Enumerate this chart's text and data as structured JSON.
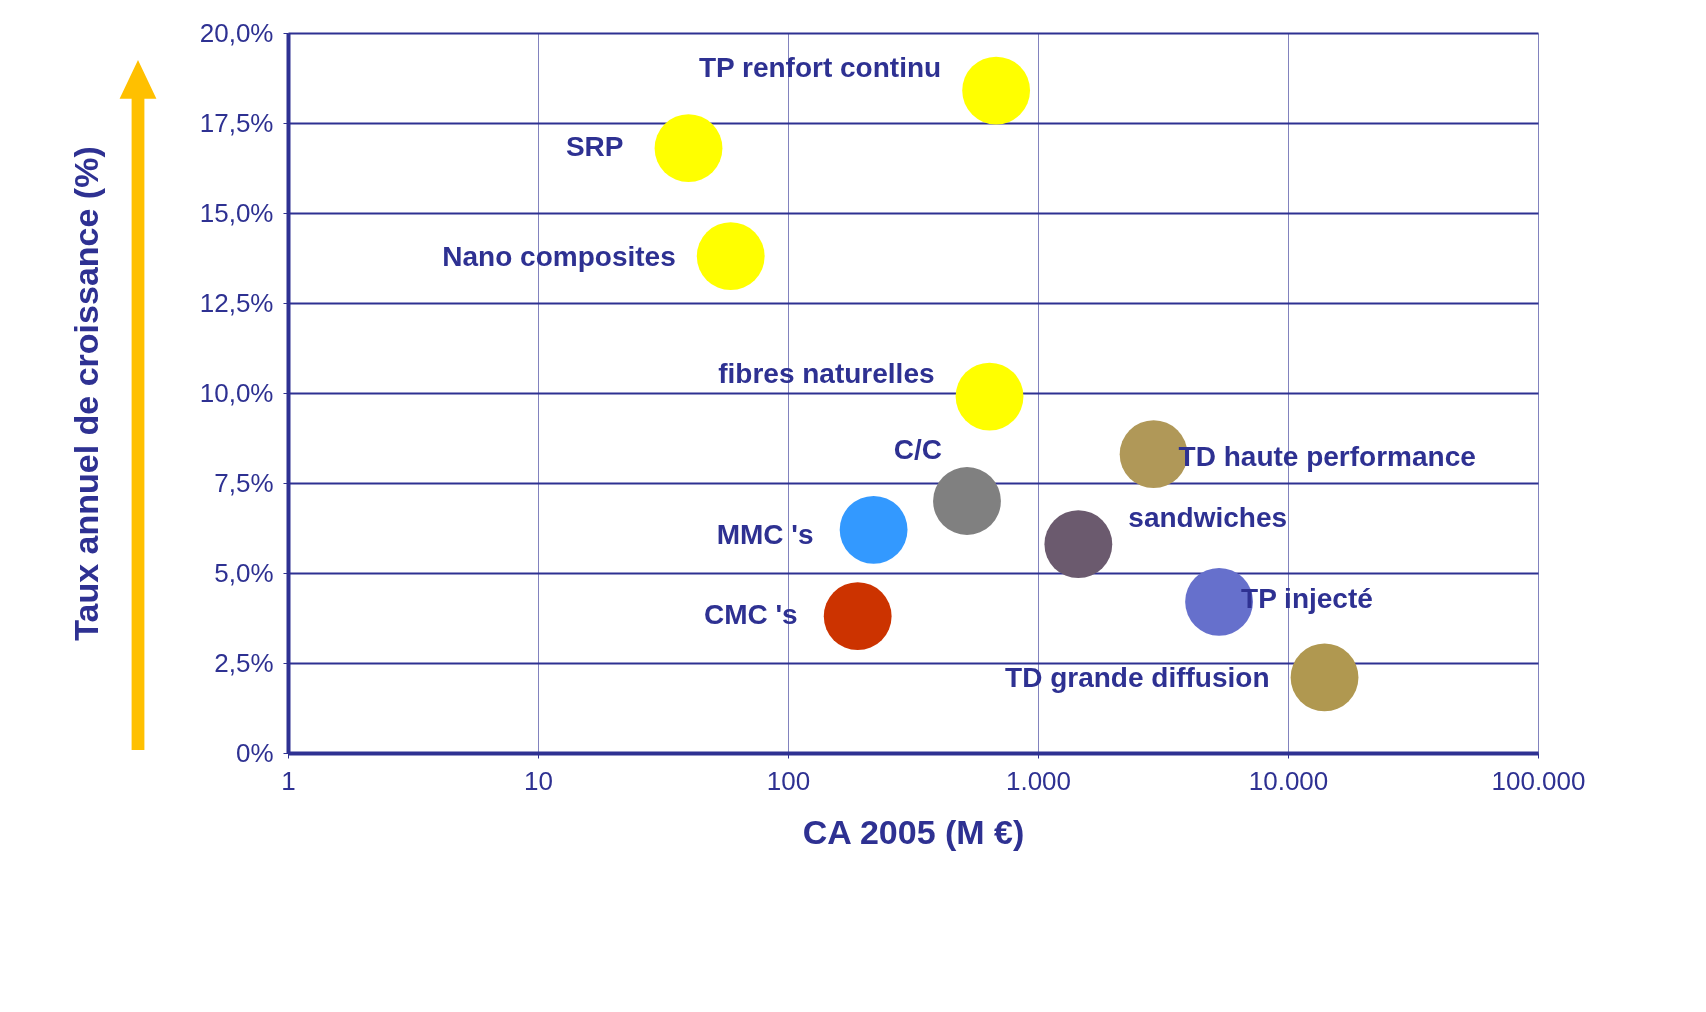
{
  "chart_data": {
    "type": "scatter",
    "xlabel": "CA 2005 (M €)",
    "ylabel": "Taux annuel de croissance  (%)",
    "log": "x",
    "grid": true,
    "marker": "circle",
    "xlim": [
      1,
      100000
    ],
    "xticks": [
      1,
      10,
      100,
      {
        "value": 1000,
        "label": "1.000"
      },
      {
        "value": 10000,
        "label": "10.000"
      },
      {
        "value": 100000,
        "label": "100.000"
      }
    ],
    "ylim": [
      0,
      20
    ],
    "yticks": [
      {
        "value": 0,
        "label": "0%"
      },
      {
        "value": 2.5,
        "label": "2,5%"
      },
      {
        "value": 5,
        "label": "5,0%"
      },
      {
        "value": 7.5,
        "label": "7,5%"
      },
      {
        "value": 10,
        "label": "10,0%"
      },
      {
        "value": 12.5,
        "label": "12,5%"
      },
      {
        "value": 15,
        "label": "15,0%"
      },
      {
        "value": 17.5,
        "label": "17,5%"
      },
      {
        "value": 20,
        "label": "20,0%"
      }
    ],
    "series": [
      {
        "name": "TP renfort continu",
        "color": "#ffff00",
        "x": [
          680
        ],
        "values": [
          18.4
        ]
      },
      {
        "name": "SRP",
        "color": "#ffff00",
        "x": [
          40
        ],
        "values": [
          16.8
        ]
      },
      {
        "name": "Nano composites",
        "color": "#ffff00",
        "x": [
          59
        ],
        "values": [
          13.8
        ]
      },
      {
        "name": "fibres naturelles",
        "color": "#ffff00",
        "x": [
          640
        ],
        "values": [
          9.9
        ]
      },
      {
        "name": "C/C",
        "color": "#808080",
        "x": [
          520
        ],
        "values": [
          7.0
        ]
      },
      {
        "name": "MMC 's",
        "color": "#3399ff",
        "x": [
          220
        ],
        "values": [
          6.2
        ]
      },
      {
        "name": "CMC 's",
        "color": "#cc3300",
        "x": [
          190
        ],
        "values": [
          3.8
        ]
      },
      {
        "name": "sandwiches",
        "color": "#6b5a6e",
        "x": [
          1450
        ],
        "values": [
          5.8
        ]
      },
      {
        "name": "TD haute performance",
        "color": "#b09858",
        "x": [
          2900
        ],
        "values": [
          8.3
        ]
      },
      {
        "name": "TP injecté",
        "color": "#6670cc",
        "x": [
          5300
        ],
        "values": [
          4.2
        ]
      },
      {
        "name": "TD grande diffusion",
        "color": "#b09850",
        "x": [
          14000
        ],
        "values": [
          2.1
        ]
      }
    ]
  }
}
